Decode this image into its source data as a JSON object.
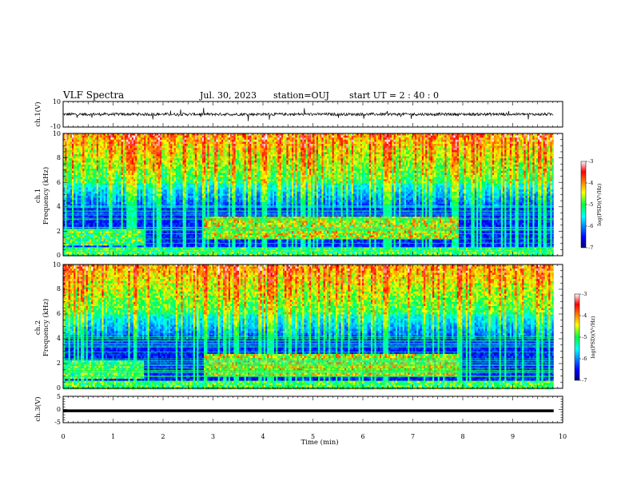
{
  "header": {
    "title": "VLF Spectra",
    "date": "Jul. 30, 2023",
    "station": "station=OUJ",
    "start": "start UT =  2 : 40 : 0"
  },
  "chart_data": [
    {
      "type": "line",
      "panel": "ch1-waveform",
      "ylabel": "ch.1(V)",
      "ylim": [
        -10,
        10
      ],
      "ytick_labels": [
        "10",
        "-10"
      ],
      "xlim": [
        0,
        10
      ],
      "x_span_min": [
        0,
        9.82
      ],
      "description_values": {
        "baseline": 0,
        "typical_amplitude": 1.5,
        "max_spike": 6
      }
    },
    {
      "type": "heatmap",
      "panel": "ch1-spectrogram",
      "ylabel": "ch.1\nFrequency (kHz)",
      "ylim": [
        0,
        10
      ],
      "ytick_labels": [
        "0",
        "2",
        "4",
        "6",
        "8",
        "10"
      ],
      "xlim": [
        0,
        10
      ],
      "data_x_range": [
        0,
        9.82
      ],
      "band_event": {
        "x_start": 2.8,
        "x_end": 7.9,
        "f_low": 1.5,
        "f_high": 3.3
      },
      "colorbar": {
        "label": "log(PSD)(V²/Hz)",
        "range": [
          -7,
          -3
        ],
        "tick_labels": [
          "-3",
          "-4",
          "-5",
          "-6",
          "-7"
        ]
      }
    },
    {
      "type": "heatmap",
      "panel": "ch2-spectrogram",
      "ylabel": "ch.2\nFrequency (kHz)",
      "ylim": [
        0,
        10
      ],
      "ytick_labels": [
        "0",
        "2",
        "4",
        "6",
        "8",
        "10"
      ],
      "xlim": [
        0,
        10
      ],
      "data_x_range": [
        0,
        9.82
      ],
      "band_event": {
        "x_start": 2.8,
        "x_end": 7.9,
        "f_low": 1.0,
        "f_high": 2.8
      },
      "colorbar": {
        "label": "log(PSD)(V²/Hz)",
        "range": [
          -7,
          -3
        ],
        "tick_labels": [
          "-3",
          "-4",
          "-5",
          "-6",
          "-7"
        ]
      }
    },
    {
      "type": "line",
      "panel": "ch3-waveform",
      "ylabel": "ch.3(V)",
      "ylim": [
        -5,
        5
      ],
      "ytick_labels": [
        "5",
        "0",
        "-5"
      ],
      "xlim": [
        0,
        10
      ],
      "x": [
        0,
        9.82
      ],
      "y": [
        -0.5,
        -0.5
      ],
      "xlabel": "Time (min)",
      "xtick_labels": [
        "0",
        "1",
        "2",
        "3",
        "4",
        "5",
        "6",
        "7",
        "8",
        "9",
        "10"
      ]
    }
  ]
}
